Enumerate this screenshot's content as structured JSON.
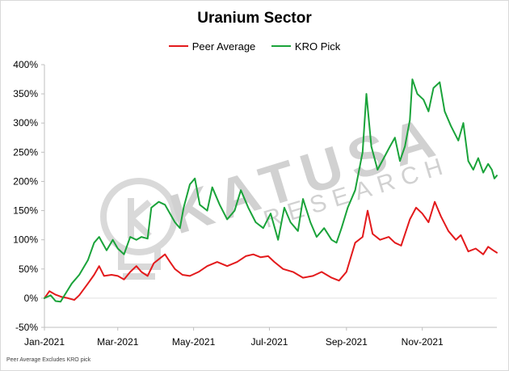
{
  "chart_data": {
    "type": "line",
    "title": "Uranium Sector",
    "watermark": "KATUSA RESEARCH",
    "footnote": "Peer Average Excludes KRO pick",
    "ylim": [
      -0.5,
      4.0
    ],
    "yticks": [
      -0.5,
      0,
      0.5,
      1.0,
      1.5,
      2.0,
      2.5,
      3.0,
      3.5,
      4.0
    ],
    "ytick_labels": [
      "-50%",
      "0%",
      "50%",
      "100%",
      "150%",
      "200%",
      "250%",
      "300%",
      "350%",
      "400%"
    ],
    "xlim": [
      "2021-01-01",
      "2021-12-31"
    ],
    "xticks": [
      "2021-01-01",
      "2021-03-01",
      "2021-05-01",
      "2021-07-01",
      "2021-09-01",
      "2021-11-01"
    ],
    "xtick_labels": [
      "Jan-2021",
      "Mar-2021",
      "May-2021",
      "Jul-2021",
      "Sep-2021",
      "Nov-2021"
    ],
    "grid": false,
    "legend_position": "top",
    "series": [
      {
        "name": "Peer Average",
        "color": "#e31a1c",
        "points": [
          [
            "2021-01-01",
            0.0
          ],
          [
            "2021-01-05",
            0.12
          ],
          [
            "2021-01-10",
            0.06
          ],
          [
            "2021-01-15",
            0.02
          ],
          [
            "2021-01-20",
            0.0
          ],
          [
            "2021-01-25",
            -0.03
          ],
          [
            "2021-01-29",
            0.05
          ],
          [
            "2021-02-05",
            0.25
          ],
          [
            "2021-02-10",
            0.4
          ],
          [
            "2021-02-14",
            0.55
          ],
          [
            "2021-02-18",
            0.38
          ],
          [
            "2021-02-24",
            0.4
          ],
          [
            "2021-03-01",
            0.38
          ],
          [
            "2021-03-06",
            0.32
          ],
          [
            "2021-03-11",
            0.45
          ],
          [
            "2021-03-16",
            0.55
          ],
          [
            "2021-03-20",
            0.45
          ],
          [
            "2021-03-25",
            0.38
          ],
          [
            "2021-03-30",
            0.6
          ],
          [
            "2021-04-05",
            0.7
          ],
          [
            "2021-04-08",
            0.75
          ],
          [
            "2021-04-12",
            0.62
          ],
          [
            "2021-04-16",
            0.5
          ],
          [
            "2021-04-22",
            0.4
          ],
          [
            "2021-04-28",
            0.38
          ],
          [
            "2021-05-05",
            0.45
          ],
          [
            "2021-05-12",
            0.55
          ],
          [
            "2021-05-20",
            0.62
          ],
          [
            "2021-05-28",
            0.55
          ],
          [
            "2021-06-05",
            0.62
          ],
          [
            "2021-06-12",
            0.72
          ],
          [
            "2021-06-18",
            0.75
          ],
          [
            "2021-06-24",
            0.7
          ],
          [
            "2021-06-30",
            0.72
          ],
          [
            "2021-07-05",
            0.62
          ],
          [
            "2021-07-12",
            0.5
          ],
          [
            "2021-07-20",
            0.45
          ],
          [
            "2021-07-28",
            0.35
          ],
          [
            "2021-08-05",
            0.38
          ],
          [
            "2021-08-12",
            0.45
          ],
          [
            "2021-08-20",
            0.35
          ],
          [
            "2021-08-26",
            0.3
          ],
          [
            "2021-09-01",
            0.45
          ],
          [
            "2021-09-08",
            0.95
          ],
          [
            "2021-09-14",
            1.05
          ],
          [
            "2021-09-18",
            1.5
          ],
          [
            "2021-09-22",
            1.1
          ],
          [
            "2021-09-28",
            1.0
          ],
          [
            "2021-10-05",
            1.05
          ],
          [
            "2021-10-10",
            0.95
          ],
          [
            "2021-10-15",
            0.9
          ],
          [
            "2021-10-22",
            1.35
          ],
          [
            "2021-10-27",
            1.55
          ],
          [
            "2021-11-01",
            1.45
          ],
          [
            "2021-11-06",
            1.3
          ],
          [
            "2021-11-11",
            1.65
          ],
          [
            "2021-11-16",
            1.4
          ],
          [
            "2021-11-22",
            1.15
          ],
          [
            "2021-11-28",
            1.0
          ],
          [
            "2021-12-02",
            1.08
          ],
          [
            "2021-12-08",
            0.8
          ],
          [
            "2021-12-14",
            0.85
          ],
          [
            "2021-12-20",
            0.75
          ],
          [
            "2021-12-24",
            0.88
          ],
          [
            "2021-12-28",
            0.82
          ],
          [
            "2021-12-31",
            0.78
          ]
        ]
      },
      {
        "name": "KRO Pick",
        "color": "#1aa33a",
        "points": [
          [
            "2021-01-01",
            0.0
          ],
          [
            "2021-01-06",
            0.05
          ],
          [
            "2021-01-10",
            -0.05
          ],
          [
            "2021-01-14",
            -0.06
          ],
          [
            "2021-01-18",
            0.08
          ],
          [
            "2021-01-23",
            0.25
          ],
          [
            "2021-01-29",
            0.4
          ],
          [
            "2021-02-05",
            0.65
          ],
          [
            "2021-02-10",
            0.95
          ],
          [
            "2021-02-14",
            1.05
          ],
          [
            "2021-02-20",
            0.82
          ],
          [
            "2021-02-25",
            1.0
          ],
          [
            "2021-03-01",
            0.85
          ],
          [
            "2021-03-06",
            0.75
          ],
          [
            "2021-03-11",
            1.05
          ],
          [
            "2021-03-16",
            1.0
          ],
          [
            "2021-03-20",
            1.05
          ],
          [
            "2021-03-25",
            1.02
          ],
          [
            "2021-03-28",
            1.55
          ],
          [
            "2021-04-03",
            1.65
          ],
          [
            "2021-04-08",
            1.6
          ],
          [
            "2021-04-12",
            1.45
          ],
          [
            "2021-04-16",
            1.3
          ],
          [
            "2021-04-20",
            1.2
          ],
          [
            "2021-04-23",
            1.55
          ],
          [
            "2021-04-28",
            1.95
          ],
          [
            "2021-05-02",
            2.05
          ],
          [
            "2021-05-06",
            1.6
          ],
          [
            "2021-05-12",
            1.5
          ],
          [
            "2021-05-16",
            1.9
          ],
          [
            "2021-05-22",
            1.6
          ],
          [
            "2021-05-28",
            1.35
          ],
          [
            "2021-06-03",
            1.5
          ],
          [
            "2021-06-08",
            1.85
          ],
          [
            "2021-06-14",
            1.55
          ],
          [
            "2021-06-20",
            1.3
          ],
          [
            "2021-06-26",
            1.2
          ],
          [
            "2021-07-02",
            1.45
          ],
          [
            "2021-07-08",
            1.0
          ],
          [
            "2021-07-13",
            1.55
          ],
          [
            "2021-07-18",
            1.3
          ],
          [
            "2021-07-24",
            1.15
          ],
          [
            "2021-07-28",
            1.7
          ],
          [
            "2021-08-03",
            1.3
          ],
          [
            "2021-08-08",
            1.05
          ],
          [
            "2021-08-14",
            1.2
          ],
          [
            "2021-08-20",
            1.0
          ],
          [
            "2021-08-24",
            0.95
          ],
          [
            "2021-08-28",
            1.2
          ],
          [
            "2021-09-02",
            1.55
          ],
          [
            "2021-09-08",
            1.85
          ],
          [
            "2021-09-14",
            2.5
          ],
          [
            "2021-09-17",
            3.5
          ],
          [
            "2021-09-21",
            2.6
          ],
          [
            "2021-09-26",
            2.2
          ],
          [
            "2021-10-01",
            2.4
          ],
          [
            "2021-10-06",
            2.6
          ],
          [
            "2021-10-10",
            2.75
          ],
          [
            "2021-10-14",
            2.35
          ],
          [
            "2021-10-18",
            2.6
          ],
          [
            "2021-10-22",
            3.05
          ],
          [
            "2021-10-24",
            3.75
          ],
          [
            "2021-10-28",
            3.5
          ],
          [
            "2021-11-02",
            3.4
          ],
          [
            "2021-11-06",
            3.2
          ],
          [
            "2021-11-10",
            3.6
          ],
          [
            "2021-11-15",
            3.7
          ],
          [
            "2021-11-19",
            3.2
          ],
          [
            "2021-11-24",
            2.95
          ],
          [
            "2021-11-30",
            2.7
          ],
          [
            "2021-12-04",
            3.0
          ],
          [
            "2021-12-08",
            2.35
          ],
          [
            "2021-12-12",
            2.2
          ],
          [
            "2021-12-16",
            2.4
          ],
          [
            "2021-12-20",
            2.15
          ],
          [
            "2021-12-24",
            2.3
          ],
          [
            "2021-12-27",
            2.2
          ],
          [
            "2021-12-29",
            2.05
          ],
          [
            "2021-12-31",
            2.1
          ]
        ]
      }
    ]
  }
}
